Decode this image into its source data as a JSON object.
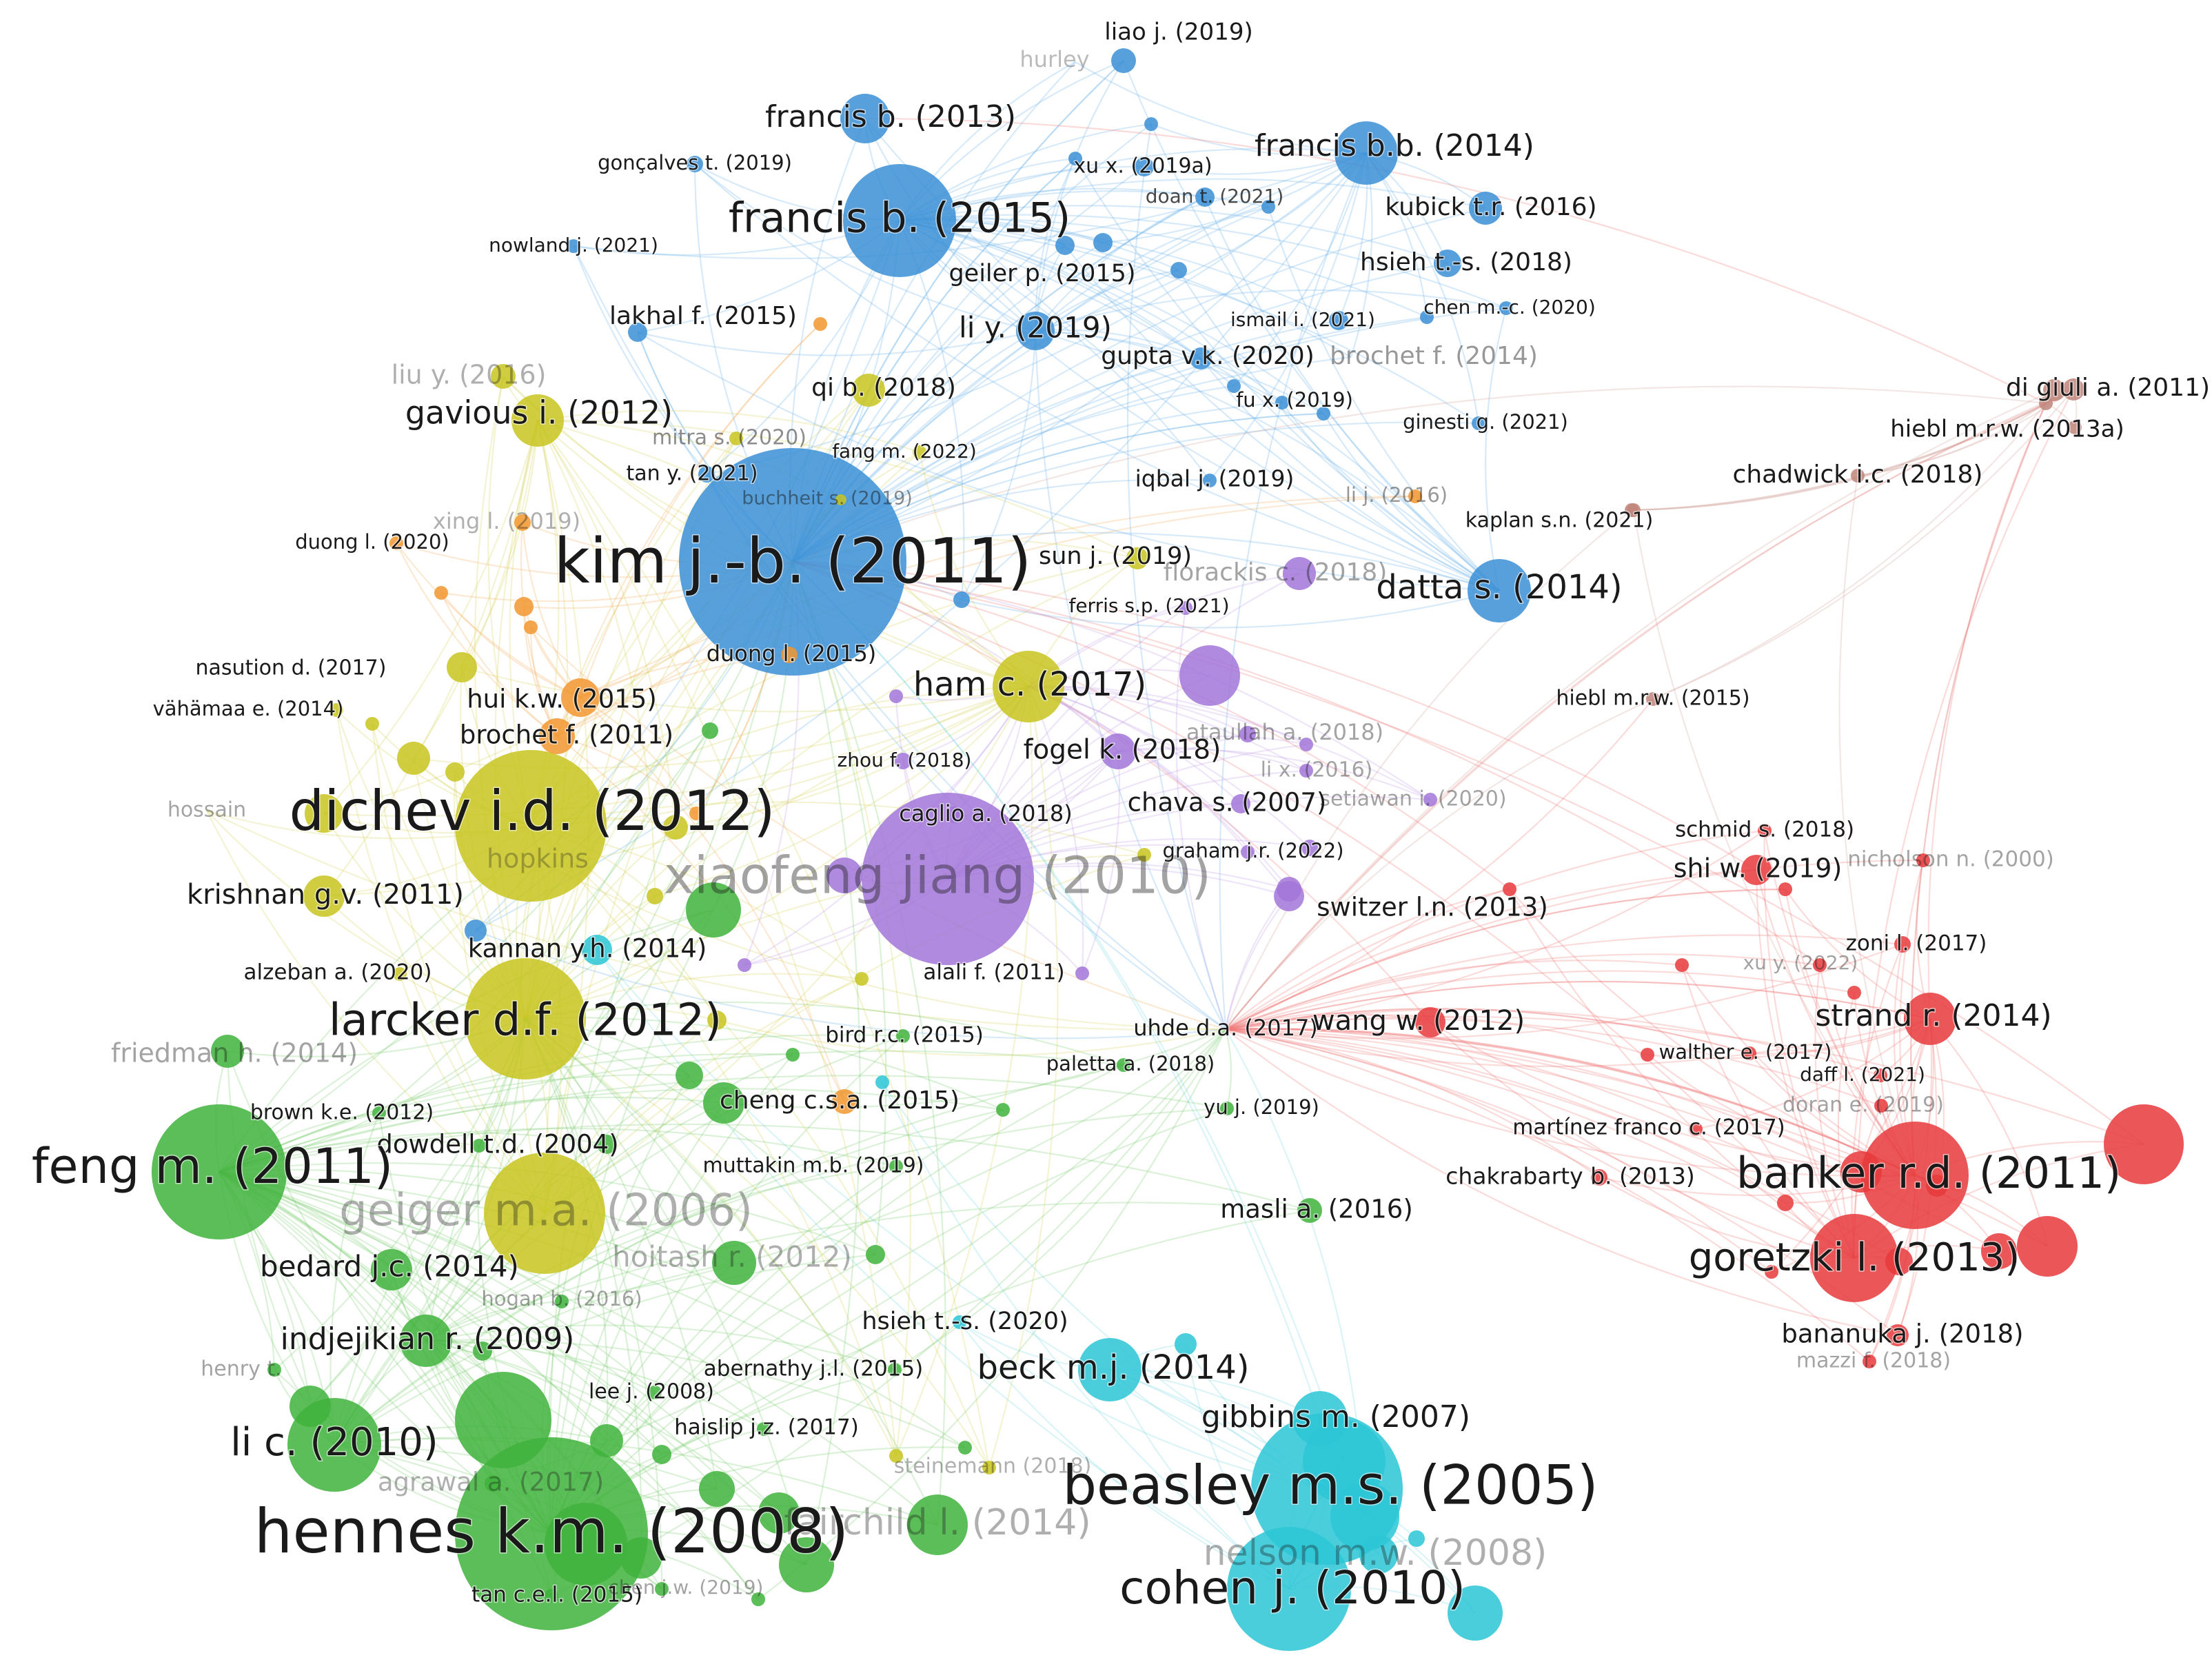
{
  "clusters": {
    "blue": {
      "color": "#3a8fd6",
      "edge": "#6fb2e8"
    },
    "yellow": {
      "color": "#c8c41e",
      "edge": "#d8d462"
    },
    "orange": {
      "color": "#f2962f",
      "edge": "#f3b064"
    },
    "purple": {
      "color": "#a276d8",
      "edge": "#c3a2e6"
    },
    "red": {
      "color": "#e8393c",
      "edge": "#ef7a7a"
    },
    "brown": {
      "color": "#c0857a",
      "edge": "#d4aaa2"
    },
    "green": {
      "color": "#3fb33c",
      "edge": "#7dcb74"
    },
    "cyan": {
      "color": "#2cc6d6",
      "edge": "#7dd8e2"
    }
  },
  "nodes": [
    {
      "label": "liao j. (2019)",
      "c": "blue"
    },
    {
      "label": "hurley",
      "c": "blue"
    },
    {
      "label": "francis b. (2013)",
      "c": "blue"
    },
    {
      "label": "francis b.b. (2014)",
      "c": "blue"
    },
    {
      "label": "gonçalves t. (2019)",
      "c": "blue"
    },
    {
      "label": "xu x. (2019a)",
      "c": "blue"
    },
    {
      "label": "doan t. (2021)",
      "c": "blue"
    },
    {
      "label": "kubick t.r. (2016)",
      "c": "blue"
    },
    {
      "label": "francis b. (2015)",
      "c": "blue"
    },
    {
      "label": "nowland j. (2021)",
      "c": "blue"
    },
    {
      "label": "geiler p. (2015)",
      "c": "blue"
    },
    {
      "label": "hsieh t.-s. (2018)",
      "c": "blue"
    },
    {
      "label": "lakhal f. (2015)",
      "c": "blue"
    },
    {
      "label": "ismail i. (2021)",
      "c": "blue"
    },
    {
      "label": "chen m.-c. (2020)",
      "c": "blue"
    },
    {
      "label": "li y. (2019)",
      "c": "blue"
    },
    {
      "label": "gupta v.k. (2020)",
      "c": "blue"
    },
    {
      "label": "brochet f. (2014)",
      "c": "blue"
    },
    {
      "label": "liu y. (2016)",
      "c": "yellow"
    },
    {
      "label": "qi b. (2018)",
      "c": "yellow"
    },
    {
      "label": "fu x. (2019)",
      "c": "blue"
    },
    {
      "label": "di giuli a. (2011)",
      "c": "brown"
    },
    {
      "label": "gavious i. (2012)",
      "c": "yellow"
    },
    {
      "label": "ginesti g. (2021)",
      "c": "blue"
    },
    {
      "label": "hiebl m.r.w. (2013a)",
      "c": "brown"
    },
    {
      "label": "mitra s. (2020)",
      "c": "yellow"
    },
    {
      "label": "fang m. (2022)",
      "c": "yellow"
    },
    {
      "label": "tan y. (2021)",
      "c": "blue"
    },
    {
      "label": "chadwick i.c. (2018)",
      "c": "brown"
    },
    {
      "label": "iqbal j. (2019)",
      "c": "blue"
    },
    {
      "label": "buchheit s. (2019)",
      "c": "yellow"
    },
    {
      "label": "li j. (2016)",
      "c": "orange"
    },
    {
      "label": "xing l. (2019)",
      "c": "orange"
    },
    {
      "label": "kaplan s.n. (2021)",
      "c": "brown"
    },
    {
      "label": "duong l. (2020)",
      "c": "orange"
    },
    {
      "label": "kim j.-b. (2011)",
      "c": "blue"
    },
    {
      "label": "sun j. (2019)",
      "c": "yellow"
    },
    {
      "label": "florackis c. (2018)",
      "c": "purple"
    },
    {
      "label": "datta s. (2014)",
      "c": "blue"
    },
    {
      "label": "ferris s.p. (2021)",
      "c": "purple"
    },
    {
      "label": "nasution d. (2017)",
      "c": "yellow"
    },
    {
      "label": "duong l. (2015)",
      "c": "orange"
    },
    {
      "label": "ham c. (2017)",
      "c": "yellow"
    },
    {
      "label": "vähämaa e. (2014)",
      "c": "yellow"
    },
    {
      "label": "hui k.w. (2015)",
      "c": "orange"
    },
    {
      "label": "hiebl m.r.w. (2015)",
      "c": "brown"
    },
    {
      "label": "brochet f. (2011)",
      "c": "orange"
    },
    {
      "label": "ataullah a. (2018)",
      "c": "purple"
    },
    {
      "label": "fogel k. (2018)",
      "c": "purple"
    },
    {
      "label": "zhou f. (2018)",
      "c": "purple"
    },
    {
      "label": "li x. (2016)",
      "c": "purple"
    },
    {
      "label": "hossain",
      "c": "yellow"
    },
    {
      "label": "dichev i.d. (2012)",
      "c": "yellow"
    },
    {
      "label": "chava s. (2007)",
      "c": "purple"
    },
    {
      "label": "setiawan i. (2020)",
      "c": "purple"
    },
    {
      "label": "caglio a. (2018)",
      "c": "purple"
    },
    {
      "label": "schmid s. (2018)",
      "c": "red"
    },
    {
      "label": "hopkins",
      "c": "yellow"
    },
    {
      "label": "xiaofeng jiang (2010)",
      "c": "purple"
    },
    {
      "label": "graham j.r. (2022)",
      "c": "purple"
    },
    {
      "label": "shi w. (2019)",
      "c": "red"
    },
    {
      "label": "nicholson n. (2000)",
      "c": "red"
    },
    {
      "label": "krishnan g.v. (2011)",
      "c": "yellow"
    },
    {
      "label": "switzer l.n. (2013)",
      "c": "purple"
    },
    {
      "label": "zoni l. (2017)",
      "c": "red"
    },
    {
      "label": "kannan y.h. (2014)",
      "c": "cyan"
    },
    {
      "label": "xu y. (2022)",
      "c": "red"
    },
    {
      "label": "alzeban a. (2020)",
      "c": "yellow"
    },
    {
      "label": "alali f. (2011)",
      "c": "purple"
    },
    {
      "label": "strand r. (2014)",
      "c": "red"
    },
    {
      "label": "larcker d.f. (2012)",
      "c": "yellow"
    },
    {
      "label": "uhde d.a. (2017)",
      "c": "red"
    },
    {
      "label": "wang w. (2012)",
      "c": "red"
    },
    {
      "label": "bird r.c. (2015)",
      "c": "green"
    },
    {
      "label": "friedman h. (2014)",
      "c": "green"
    },
    {
      "label": "walther e. (2017)",
      "c": "red"
    },
    {
      "label": "paletta a. (2018)",
      "c": "green"
    },
    {
      "label": "daff l. (2021)",
      "c": "red"
    },
    {
      "label": "brown k.e. (2012)",
      "c": "green"
    },
    {
      "label": "cheng c.s.a. (2015)",
      "c": "orange"
    },
    {
      "label": "doran e. (2019)",
      "c": "red"
    },
    {
      "label": "yu j. (2019)",
      "c": "green"
    },
    {
      "label": "dowdell t.d. (2004)",
      "c": "green"
    },
    {
      "label": "martínez franco c. (2017)",
      "c": "red"
    },
    {
      "label": "feng m. (2011)",
      "c": "green"
    },
    {
      "label": "muttakin m.b. (2019)",
      "c": "green"
    },
    {
      "label": "chakrabarty b. (2013)",
      "c": "red"
    },
    {
      "label": "banker r.d. (2011)",
      "c": "red"
    },
    {
      "label": "geiger m.a. (2006)",
      "c": "yellow"
    },
    {
      "label": "masli a. (2016)",
      "c": "green"
    },
    {
      "label": "goretzki l. (2013)",
      "c": "red"
    },
    {
      "label": "bedard j.c. (2014)",
      "c": "green"
    },
    {
      "label": "hoitash r. (2012)",
      "c": "green"
    },
    {
      "label": "hogan b. (2016)",
      "c": "green"
    },
    {
      "label": "hsieh t.-s. (2020)",
      "c": "cyan"
    },
    {
      "label": "bananuka j. (2018)",
      "c": "red"
    },
    {
      "label": "indjejikian r. (2009)",
      "c": "green"
    },
    {
      "label": "mazzi f. (2018)",
      "c": "red"
    },
    {
      "label": "henry t.",
      "c": "green"
    },
    {
      "label": "abernathy j.l. (2015)",
      "c": "green"
    },
    {
      "label": "beck m.j. (2014)",
      "c": "cyan"
    },
    {
      "label": "lee j. (2008)",
      "c": "green"
    },
    {
      "label": "gibbins m. (2007)",
      "c": "cyan"
    },
    {
      "label": "haislip j.z. (2017)",
      "c": "green"
    },
    {
      "label": "li c. (2010)",
      "c": "green"
    },
    {
      "label": "agrawal a. (2017)",
      "c": "green"
    },
    {
      "label": "steinemann (2018)",
      "c": "yellow"
    },
    {
      "label": "beasley m.s. (2005)",
      "c": "cyan"
    },
    {
      "label": "fairchild l. (2014)",
      "c": "green"
    },
    {
      "label": "hennes k.m. (2008)",
      "c": "green"
    },
    {
      "label": "nelson m.w. (2008)",
      "c": "cyan"
    },
    {
      "label": "tan c.e.l. (2015)",
      "c": "green"
    },
    {
      "label": "chen j.w. (2019)",
      "c": "green"
    },
    {
      "label": "cohen j. (2010)",
      "c": "cyan"
    }
  ]
}
